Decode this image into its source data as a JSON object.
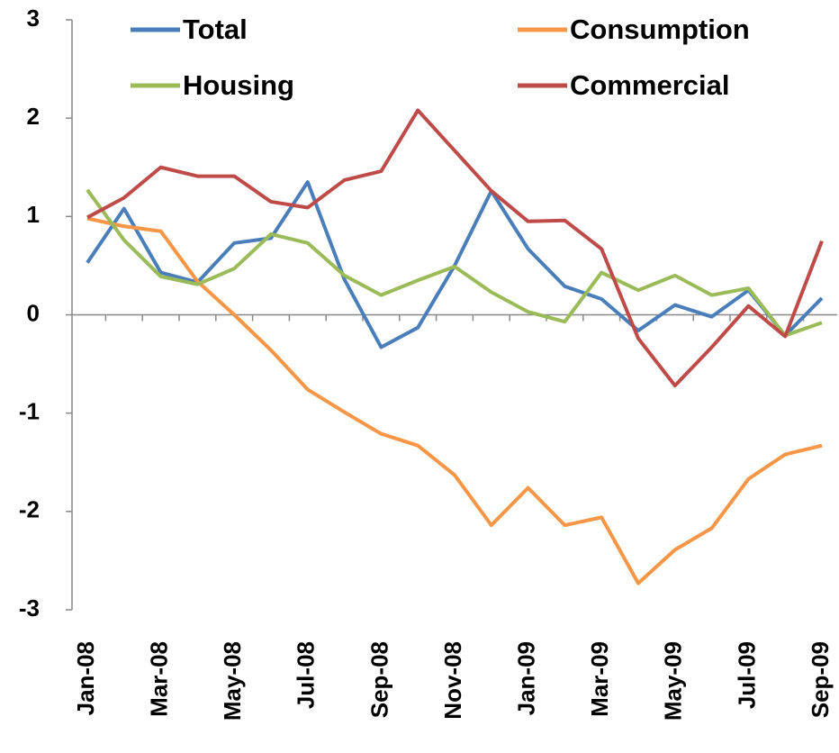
{
  "chart_data": {
    "type": "line",
    "categories": [
      "Jan-08",
      null,
      "Mar-08",
      null,
      "May-08",
      null,
      "Jul-08",
      null,
      "Sep-08",
      null,
      "Nov-08",
      null,
      "Jan-09",
      null,
      "Mar-09",
      null,
      "May-09",
      null,
      "Jul-09",
      null,
      "Sep-09"
    ],
    "series": [
      {
        "name": "Total",
        "color": "#4a7ebb",
        "values": [
          0.53,
          1.08,
          0.43,
          0.33,
          0.73,
          0.78,
          1.35,
          0.36,
          -0.33,
          -0.13,
          0.5,
          1.26,
          0.67,
          0.29,
          0.16,
          -0.16,
          0.1,
          -0.02,
          0.25,
          -0.21,
          0.17
        ]
      },
      {
        "name": "Consumption",
        "color": "#f79646",
        "values": [
          0.98,
          0.9,
          0.85,
          0.34,
          0,
          -0.36,
          -0.76,
          -0.99,
          -1.21,
          -1.33,
          -1.63,
          -2.14,
          -1.76,
          -2.14,
          -2.06,
          -2.73,
          -2.39,
          -2.17,
          -1.67,
          -1.42,
          -1.33
        ]
      },
      {
        "name": "Housing",
        "color": "#9bbb59",
        "values": [
          1.27,
          0.76,
          0.39,
          0.31,
          0.47,
          0.82,
          0.73,
          0.4,
          0.2,
          0.35,
          0.49,
          0.23,
          0.03,
          -0.07,
          0.43,
          0.25,
          0.4,
          0.2,
          0.27,
          -0.21,
          -0.08
        ]
      },
      {
        "name": "Commercial",
        "color": "#be4b48",
        "values": [
          0.99,
          1.19,
          1.5,
          1.41,
          1.41,
          1.15,
          1.09,
          1.37,
          1.46,
          2.08,
          1.67,
          1.26,
          0.95,
          0.96,
          0.67,
          -0.24,
          -0.72,
          -0.33,
          0.09,
          -0.22,
          0.75
        ]
      }
    ],
    "ylim": [
      -3,
      3
    ],
    "yticks": [
      -3,
      -2,
      -1,
      0,
      1,
      2,
      3
    ]
  }
}
